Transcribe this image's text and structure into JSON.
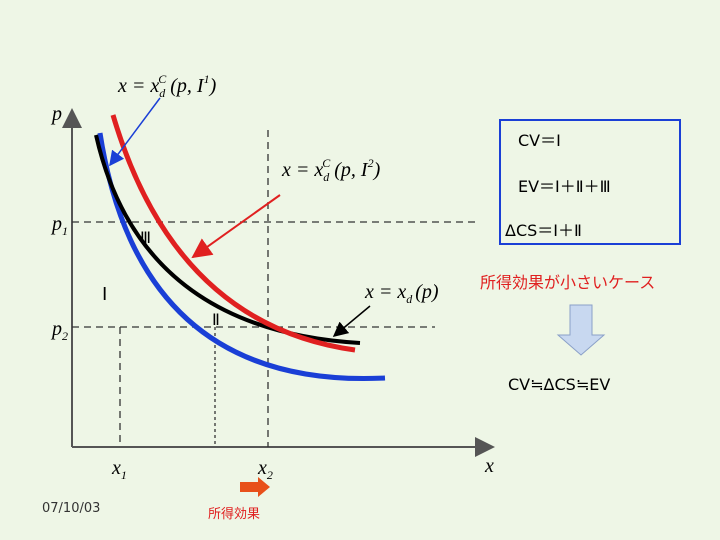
{
  "axes": {
    "y_label": "p",
    "x_label": "x",
    "p1": {
      "base": "p",
      "sub": "1"
    },
    "p2": {
      "base": "p",
      "sub": "2"
    },
    "x1": {
      "base": "x",
      "sub": "1"
    },
    "x2": {
      "base": "x",
      "sub": "2"
    }
  },
  "curves": [
    {
      "lhs": "x = x",
      "sub": "d",
      "sup": "C",
      "args": "(p, I",
      "argsup": "1",
      "close": ")"
    },
    {
      "lhs": "x = x",
      "sub": "d",
      "sup": "C",
      "args": "(p, I",
      "argsup": "2",
      "close": ")"
    },
    {
      "lhs": "x = x",
      "sub": "d",
      "args": "(p)"
    }
  ],
  "areas": [
    "Ⅰ",
    "Ⅱ",
    "Ⅲ"
  ],
  "box": [
    "CV＝Ⅰ",
    "EV＝Ⅰ＋Ⅱ＋Ⅲ",
    "ΔCS＝Ⅰ＋Ⅱ"
  ],
  "case_title": "所得効果が小さいケース",
  "conclusion": "CV≒ΔCS≒EV",
  "date": "07/10/03",
  "income_effect": "所得効果"
}
